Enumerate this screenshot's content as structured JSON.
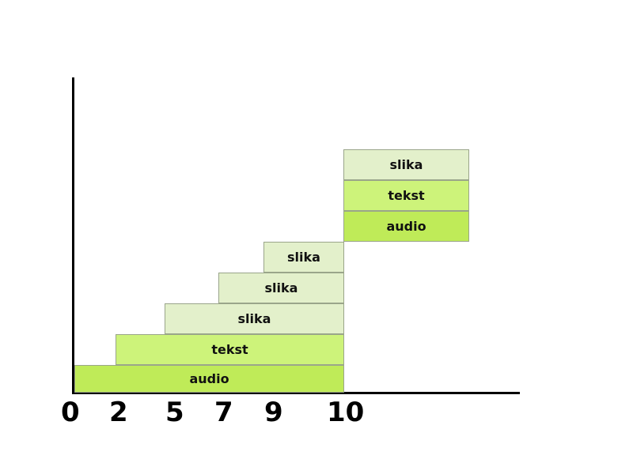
{
  "axis": {
    "ticks": [
      "0",
      "2",
      "5",
      "7",
      "9",
      "10"
    ]
  },
  "blocks": {
    "audio_main": "audio",
    "tekst_main": "tekst",
    "slika_1": "slika",
    "slika_2": "slika",
    "slika_3": "slika",
    "slika_top": "slika",
    "tekst_top": "tekst",
    "audio_top": "audio"
  },
  "colors": {
    "audio": "#bfeb58",
    "tekst": "#cdf37a",
    "slika": "#e3f0cb",
    "axis": "#000000"
  }
}
